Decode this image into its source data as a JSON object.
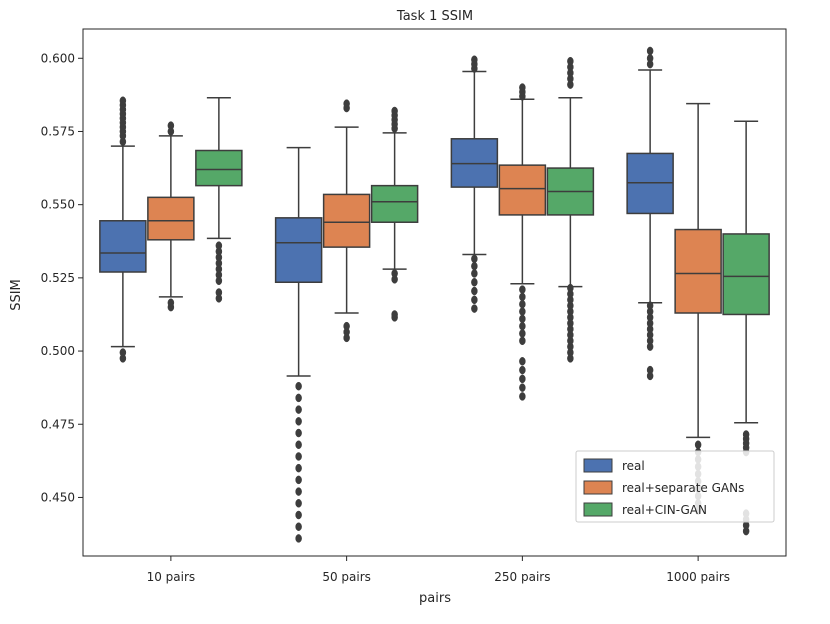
{
  "chart_data": {
    "type": "box",
    "title": "Task 1 SSIM",
    "xlabel": "pairs",
    "ylabel": "SSIM",
    "ylim": [
      0.43,
      0.61
    ],
    "yticks": [
      "0.450",
      "0.475",
      "0.500",
      "0.525",
      "0.550",
      "0.575",
      "0.600"
    ],
    "categories": [
      "10 pairs",
      "50 pairs",
      "250 pairs",
      "1000 pairs"
    ],
    "legend_position": "lower-right",
    "series": [
      {
        "name": "real",
        "color": "#4c72b0",
        "boxes": [
          {
            "min": 0.5015,
            "q1": 0.527,
            "median": 0.5335,
            "q3": 0.5445,
            "max": 0.57,
            "outliers_low": [
              0.4975,
              0.4995
            ],
            "outliers_high": [
              0.5715,
              0.5735,
              0.575,
              0.5765,
              0.578,
              0.5795,
              0.581,
              0.5825,
              0.584,
              0.5855
            ]
          },
          {
            "min": 0.4915,
            "q1": 0.5235,
            "median": 0.537,
            "q3": 0.5455,
            "max": 0.5695,
            "outliers_low": [
              0.436,
              0.44,
              0.444,
              0.448,
              0.452,
              0.456,
              0.46,
              0.464,
              0.468,
              0.472,
              0.476,
              0.48,
              0.484,
              0.488
            ],
            "outliers_high": []
          },
          {
            "min": 0.533,
            "q1": 0.556,
            "median": 0.564,
            "q3": 0.5725,
            "max": 0.5955,
            "outliers_low": [
              0.5145,
              0.5175,
              0.5205,
              0.5235,
              0.5265,
              0.529,
              0.5315
            ],
            "outliers_high": [
              0.5965,
              0.598,
              0.5995
            ]
          },
          {
            "min": 0.5165,
            "q1": 0.547,
            "median": 0.5575,
            "q3": 0.5675,
            "max": 0.596,
            "outliers_low": [
              0.4915,
              0.4935,
              0.5015,
              0.5035,
              0.5055,
              0.5075,
              0.5095,
              0.5115,
              0.5135,
              0.5155
            ],
            "outliers_high": [
              0.598,
              0.6,
              0.6025
            ]
          }
        ]
      },
      {
        "name": "real+separate GANs",
        "color": "#dd8452",
        "boxes": [
          {
            "min": 0.5185,
            "q1": 0.538,
            "median": 0.5445,
            "q3": 0.5525,
            "max": 0.5735,
            "outliers_low": [
              0.515,
              0.5165
            ],
            "outliers_high": [
              0.575,
              0.577
            ]
          },
          {
            "min": 0.513,
            "q1": 0.5355,
            "median": 0.544,
            "q3": 0.5535,
            "max": 0.5765,
            "outliers_low": [
              0.5045,
              0.5065,
              0.5085
            ],
            "outliers_high": [
              0.583,
              0.5845
            ]
          },
          {
            "min": 0.523,
            "q1": 0.5465,
            "median": 0.5555,
            "q3": 0.5635,
            "max": 0.586,
            "outliers_low": [
              0.4845,
              0.4875,
              0.4905,
              0.4935,
              0.4965,
              0.5035,
              0.506,
              0.5085,
              0.511,
              0.5135,
              0.516,
              0.5185,
              0.521
            ],
            "outliers_high": [
              0.587,
              0.5885,
              0.59
            ]
          },
          {
            "min": 0.4705,
            "q1": 0.513,
            "median": 0.5265,
            "q3": 0.5415,
            "max": 0.5845,
            "outliers_low": [
              0.4455,
              0.448,
              0.4505,
              0.453,
              0.4555,
              0.458,
              0.4605,
              0.463,
              0.4655,
              0.468
            ],
            "outliers_high": []
          }
        ]
      },
      {
        "name": "real+CIN-GAN",
        "color": "#55a868",
        "boxes": [
          {
            "min": 0.5385,
            "q1": 0.5565,
            "median": 0.562,
            "q3": 0.5685,
            "max": 0.5865,
            "outliers_low": [
              0.518,
              0.52,
              0.524,
              0.526,
              0.528,
              0.53,
              0.532,
              0.534,
              0.536
            ],
            "outliers_high": []
          },
          {
            "min": 0.528,
            "q1": 0.544,
            "median": 0.551,
            "q3": 0.5565,
            "max": 0.5745,
            "outliers_low": [
              0.5115,
              0.5125,
              0.5245,
              0.5265
            ],
            "outliers_high": [
              0.576,
              0.5775,
              0.579,
              0.5805,
              0.582
            ]
          },
          {
            "min": 0.522,
            "q1": 0.5465,
            "median": 0.5545,
            "q3": 0.5625,
            "max": 0.5865,
            "outliers_low": [
              0.4975,
              0.4995,
              0.5015,
              0.5035,
              0.5055,
              0.5075,
              0.5095,
              0.5115,
              0.5135,
              0.5155,
              0.5175,
              0.5195,
              0.5215
            ],
            "outliers_high": [
              0.591,
              0.593,
              0.595,
              0.597,
              0.599
            ]
          },
          {
            "min": 0.4755,
            "q1": 0.5125,
            "median": 0.5255,
            "q3": 0.54,
            "max": 0.5785,
            "outliers_low": [
              0.4385,
              0.4405,
              0.4425,
              0.4445,
              0.4655,
              0.467,
              0.4685,
              0.47,
              0.4715
            ],
            "outliers_high": []
          }
        ]
      }
    ]
  }
}
